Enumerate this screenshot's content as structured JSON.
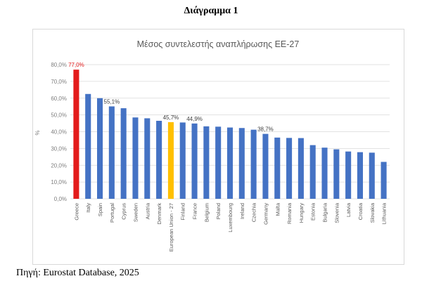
{
  "document": {
    "heading": "Διάγραμμα 1",
    "source": "Πηγή: Eurostat Database, 2025"
  },
  "colors": {
    "default_bar": "#4472c4",
    "greece_bar": "#e31b1b",
    "eu_bar": "#ffc000",
    "greece_label": "#e31b1b",
    "grid": "#d9d9d9",
    "axis_text": "#808080"
  },
  "chart_data": {
    "type": "bar",
    "title": "Μέσος συντελεστής αναπλήρωσης ΕΕ-27",
    "xlabel": "",
    "ylabel": "%",
    "ylim": [
      0,
      80
    ],
    "grid": true,
    "yticks": [
      0,
      10,
      20,
      30,
      40,
      50,
      60,
      70,
      80
    ],
    "ytick_labels": [
      "0,0%",
      "10,0%",
      "20,0%",
      "30,0%",
      "40,0%",
      "50,0%",
      "60,0%",
      "70,0%",
      "80,0%"
    ],
    "categories": [
      "Greece",
      "Italy",
      "Spain",
      "Portugal",
      "Cyprus",
      "Sweden",
      "Austria",
      "Denmark",
      "European Union - 27",
      "Finland",
      "France",
      "Belgium",
      "Poland",
      "Luxembourg",
      "Ireland",
      "Czechia",
      "Germany",
      "Malta",
      "Romania",
      "Hungary",
      "Estonia",
      "Bulgaria",
      "Slovenia",
      "Latvia",
      "Croatia",
      "Slovakia",
      "Lithuania"
    ],
    "values": [
      77.0,
      62.5,
      60.0,
      55.1,
      54.0,
      48.5,
      48.0,
      46.5,
      45.7,
      45.5,
      44.9,
      43.2,
      43.0,
      42.5,
      42.2,
      41.2,
      38.7,
      36.5,
      36.3,
      36.2,
      32.0,
      30.5,
      29.5,
      28.2,
      27.8,
      27.5,
      22.0
    ],
    "data_labels": [
      {
        "category": "Greece",
        "text": "77,0%"
      },
      {
        "category": "Portugal",
        "text": "55,1%"
      },
      {
        "category": "European Union - 27",
        "text": "45,7%"
      },
      {
        "category": "France",
        "text": "44,9%"
      },
      {
        "category": "Germany",
        "text": "38,7%"
      }
    ]
  }
}
